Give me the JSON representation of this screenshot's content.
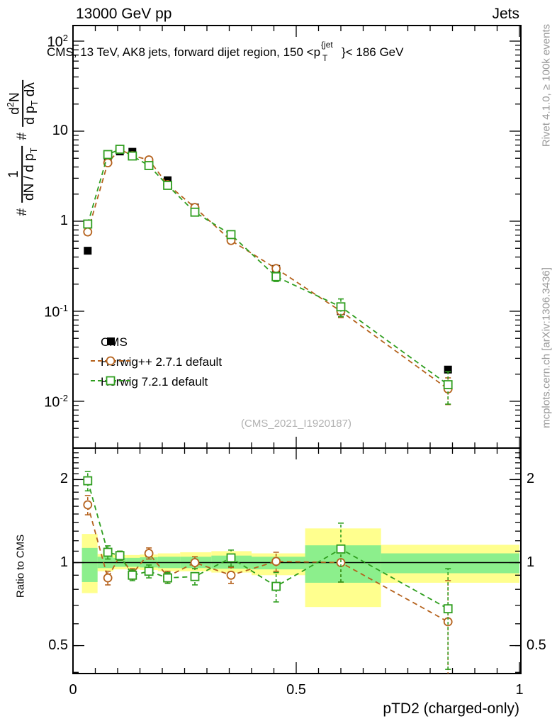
{
  "header": {
    "left": "13000 GeV pp",
    "right": "Jets"
  },
  "title": {
    "prefix": "CMS, 13 TeV, AK8 jets, forward dijet region, 150 <p",
    "sup": "{jet",
    "sub": "T",
    "suffix": "}< 186 GeV"
  },
  "ylabel": {
    "hash1": "#",
    "frac1_num": "1",
    "frac1_den_pre": "dN / d p",
    "frac1_den_sub": "T",
    "hash2": "#",
    "frac2_num_pre": "d",
    "frac2_num_sup": "2",
    "frac2_num_post": "N",
    "frac2_den_pre": "d p",
    "frac2_den_sub": "T",
    "frac2_den_post": " dλ"
  },
  "side_notes": {
    "top": "Rivet 4.1.0, ≥ 100k events",
    "bottom": "mcplots.cern.ch [arXiv:1306.3436]"
  },
  "watermark": "(CMS_2021_I1920187)",
  "ratio_axis_label": "Ratio to CMS",
  "xlabel": "pTD2 (charged-only)",
  "colors": {
    "cms": "#000000",
    "herwigpp": "#b5621d",
    "herwig7": "#2f9e1f",
    "band_yellow": "#ffff8e",
    "band_green": "#8cef8c",
    "gray_text": "#999999",
    "watermark": "#b2b2b2"
  },
  "legend": [
    {
      "label": "CMS",
      "marker": "filled-square",
      "color": "#000000",
      "dashed": false
    },
    {
      "label": "Herwig++ 2.7.1 default",
      "marker": "open-circle",
      "color": "#b5621d",
      "dashed": true
    },
    {
      "label": "Herwig 7.2.1 default",
      "marker": "open-square",
      "color": "#2f9e1f",
      "dashed": true
    }
  ],
  "chart_data": {
    "type": "line",
    "title": "CMS, 13 TeV, AK8 jets, forward dijet region, 150 < pT(jet) < 186 GeV",
    "xlabel": "pTD2 (charged-only)",
    "ylabel": "# 1/(dN/dpT) # d2N/(dpT dlambda)",
    "x_range": [
      0,
      1.003
    ],
    "main_y_log_range": [
      0.003,
      122
    ],
    "ratio_y_log_range": [
      0.4,
      2.62
    ],
    "grid": false,
    "legend_position": "inside-left-middle",
    "x": [
      0.033,
      0.078,
      0.105,
      0.133,
      0.17,
      0.212,
      0.273,
      0.354,
      0.455,
      0.6,
      0.84
    ],
    "series": [
      {
        "name": "CMS",
        "marker": "filled-square",
        "color": "#000000",
        "dashed": false,
        "connect": false,
        "values": [
          0.47,
          5.05,
          5.95,
          5.9,
          4.45,
          2.85,
          1.42,
          0.68,
          0.295,
          0.1,
          0.0225
        ],
        "errors": [
          0.02,
          0.12,
          0.12,
          0.12,
          0.1,
          0.07,
          0.04,
          0.025,
          0.012,
          0.006,
          0.0015
        ]
      },
      {
        "name": "Herwig++ 2.7.1 default",
        "marker": "open-circle",
        "color": "#b5621d",
        "dashed": true,
        "connect": true,
        "values": [
          0.76,
          4.45,
          6.3,
          5.35,
          4.8,
          2.55,
          1.42,
          0.61,
          0.298,
          0.1,
          0.0137
        ],
        "errors": [
          0.06,
          0.22,
          0.22,
          0.2,
          0.18,
          0.1,
          0.07,
          0.04,
          0.024,
          0.015,
          0.0045
        ]
      },
      {
        "name": "Herwig 7.2.1 default",
        "marker": "open-square",
        "color": "#2f9e1f",
        "dashed": true,
        "connect": true,
        "values": [
          0.93,
          5.5,
          6.3,
          5.3,
          4.15,
          2.5,
          1.26,
          0.71,
          0.242,
          0.112,
          0.0153
        ],
        "errors": [
          0.07,
          0.28,
          0.25,
          0.2,
          0.18,
          0.1,
          0.07,
          0.045,
          0.028,
          0.025,
          0.006
        ]
      }
    ],
    "ratio": {
      "reference": "CMS",
      "series": [
        {
          "name": "Herwig++ 2.7.1 default",
          "marker": "open-circle",
          "color": "#b5621d",
          "dashed": true,
          "values": [
            1.62,
            0.88,
            1.06,
            0.91,
            1.08,
            0.89,
            1.0,
            0.9,
            1.01,
            1.0,
            0.61
          ],
          "errors": [
            0.13,
            0.05,
            0.04,
            0.04,
            0.05,
            0.04,
            0.05,
            0.06,
            0.08,
            0.15,
            0.25
          ]
        },
        {
          "name": "Herwig 7.2.1 default",
          "marker": "open-square",
          "color": "#2f9e1f",
          "dashed": true,
          "values": [
            1.98,
            1.09,
            1.06,
            0.9,
            0.93,
            0.88,
            0.89,
            1.04,
            0.82,
            1.12,
            0.68
          ],
          "errors": [
            0.16,
            0.06,
            0.04,
            0.04,
            0.05,
            0.04,
            0.06,
            0.07,
            0.1,
            0.27,
            0.27
          ]
        }
      ],
      "bands": {
        "edges": [
          0.02,
          0.055,
          0.09,
          0.12,
          0.15,
          0.19,
          0.24,
          0.31,
          0.4,
          0.52,
          0.69,
          1.0
        ],
        "yellow_lo": [
          0.775,
          0.93,
          0.945,
          0.945,
          0.94,
          0.93,
          0.93,
          0.92,
          0.9,
          0.69,
          0.845
        ],
        "yellow_hi": [
          1.27,
          1.075,
          1.065,
          1.065,
          1.07,
          1.08,
          1.09,
          1.1,
          1.08,
          1.33,
          1.16
        ],
        "green_lo": [
          0.85,
          0.955,
          0.965,
          0.965,
          0.96,
          0.955,
          0.955,
          0.95,
          0.945,
          0.845,
          0.915
        ],
        "green_hi": [
          1.13,
          1.05,
          1.04,
          1.04,
          1.045,
          1.05,
          1.05,
          1.06,
          1.05,
          1.155,
          1.08
        ]
      },
      "unity_line": 1
    },
    "axes": {
      "x_major_ticks": [
        0,
        0.5,
        1
      ],
      "x_major_labels": [
        "0",
        "0.5",
        "1"
      ],
      "x_minor_step": 0.05,
      "main_y_exponents": [
        2,
        1,
        0,
        -1,
        -2
      ],
      "ratio_y_ticks": [
        0.5,
        1,
        2
      ],
      "ratio_y_labels": [
        "0.5",
        "1",
        "2"
      ]
    }
  }
}
